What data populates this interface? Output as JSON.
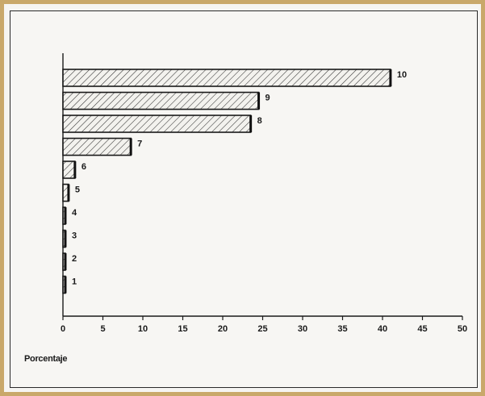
{
  "chart_data": {
    "type": "bar",
    "orientation": "horizontal",
    "title": "",
    "xlabel": "Porcentaje",
    "ylabel": "",
    "xlim": [
      0,
      50
    ],
    "xticks": [
      "0",
      "5",
      "10",
      "15",
      "20",
      "25",
      "30",
      "35",
      "40",
      "45",
      "50"
    ],
    "categories": [
      "10",
      "9",
      "8",
      "7",
      "6",
      "5",
      "4",
      "3",
      "2",
      "1"
    ],
    "values": [
      41,
      24.5,
      23.5,
      8.5,
      1.5,
      0.7,
      0.3,
      0.3,
      0.3,
      0.3
    ],
    "grid": false,
    "legend": "none",
    "bar_fill": "hatched",
    "colors": {
      "bar_stroke": "#1a1a1a",
      "hatch": "#333333",
      "background": "#f7f6f3",
      "frame": "#c9a86a"
    }
  }
}
